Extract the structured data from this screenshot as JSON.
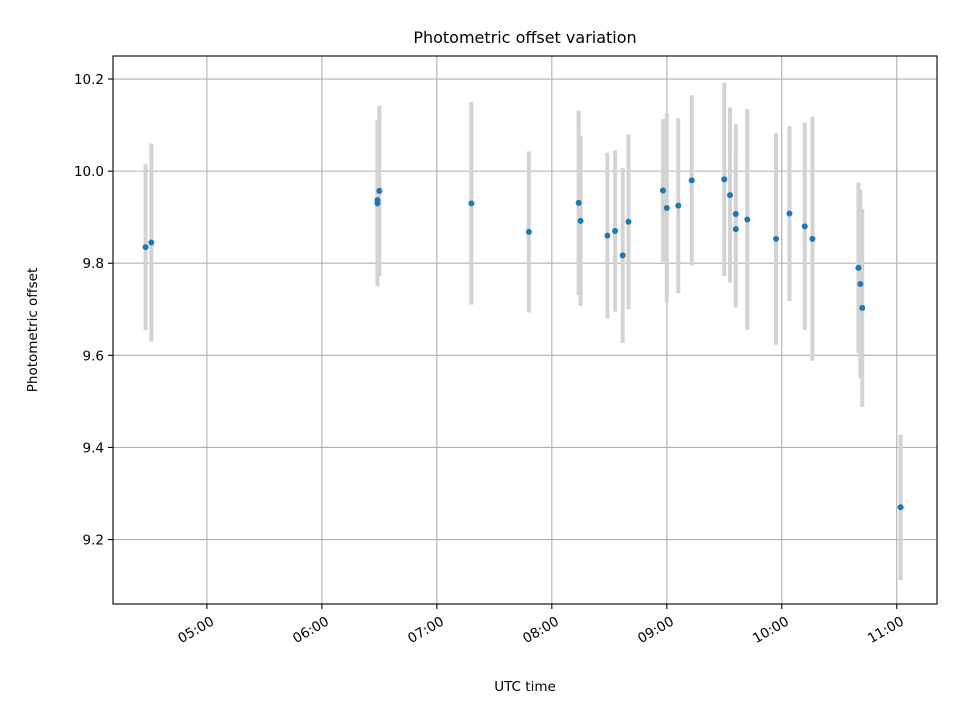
{
  "chart_data": {
    "type": "scatter",
    "title": "Photometric offset variation",
    "xlabel": "UTC time",
    "ylabel": "Photometric offset",
    "x_ticks": [
      "05:00",
      "06:00",
      "07:00",
      "08:00",
      "09:00",
      "10:00",
      "11:00"
    ],
    "y_ticks": [
      "9.2",
      "9.4",
      "9.6",
      "9.8",
      "10.0",
      "10.2"
    ],
    "xlim": [
      "04:11",
      "11:21"
    ],
    "ylim": [
      9.06,
      10.25
    ],
    "grid": true,
    "colors": {
      "point": "#1f77b4",
      "errorbar": "#d3d3d3",
      "grid": "#b0b0b0"
    },
    "points": [
      {
        "x": "04:28",
        "y": 9.835,
        "err": 0.18
      },
      {
        "x": "04:31",
        "y": 9.845,
        "err": 0.215
      },
      {
        "x": "06:29",
        "y": 9.93,
        "err": 0.18
      },
      {
        "x": "06:29",
        "y": 9.937,
        "err": 0.175
      },
      {
        "x": "06:30",
        "y": 9.957,
        "err": 0.185
      },
      {
        "x": "07:18",
        "y": 9.93,
        "err": 0.22
      },
      {
        "x": "07:48",
        "y": 9.868,
        "err": 0.175
      },
      {
        "x": "08:14",
        "y": 9.931,
        "err": 0.2
      },
      {
        "x": "08:15",
        "y": 9.892,
        "err": 0.185
      },
      {
        "x": "08:29",
        "y": 9.86,
        "err": 0.18
      },
      {
        "x": "08:33",
        "y": 9.87,
        "err": 0.175
      },
      {
        "x": "08:37",
        "y": 9.817,
        "err": 0.19
      },
      {
        "x": "08:40",
        "y": 9.89,
        "err": 0.19
      },
      {
        "x": "08:58",
        "y": 9.958,
        "err": 0.155
      },
      {
        "x": "09:00",
        "y": 9.92,
        "err": 0.205
      },
      {
        "x": "09:06",
        "y": 9.925,
        "err": 0.19
      },
      {
        "x": "09:13",
        "y": 9.98,
        "err": 0.185
      },
      {
        "x": "09:30",
        "y": 9.982,
        "err": 0.21
      },
      {
        "x": "09:33",
        "y": 9.948,
        "err": 0.19
      },
      {
        "x": "09:36",
        "y": 9.907,
        "err": 0.195
      },
      {
        "x": "09:36",
        "y": 9.874,
        "err": 0.17
      },
      {
        "x": "09:42",
        "y": 9.895,
        "err": 0.24
      },
      {
        "x": "09:57",
        "y": 9.853,
        "err": 0.23
      },
      {
        "x": "10:04",
        "y": 9.908,
        "err": 0.19
      },
      {
        "x": "10:12",
        "y": 9.88,
        "err": 0.225
      },
      {
        "x": "10:16",
        "y": 9.853,
        "err": 0.265
      },
      {
        "x": "10:40",
        "y": 9.79,
        "err": 0.185
      },
      {
        "x": "10:41",
        "y": 9.755,
        "err": 0.205
      },
      {
        "x": "10:42",
        "y": 9.703,
        "err": 0.215
      },
      {
        "x": "11:02",
        "y": 9.27,
        "err": 0.158
      }
    ]
  }
}
